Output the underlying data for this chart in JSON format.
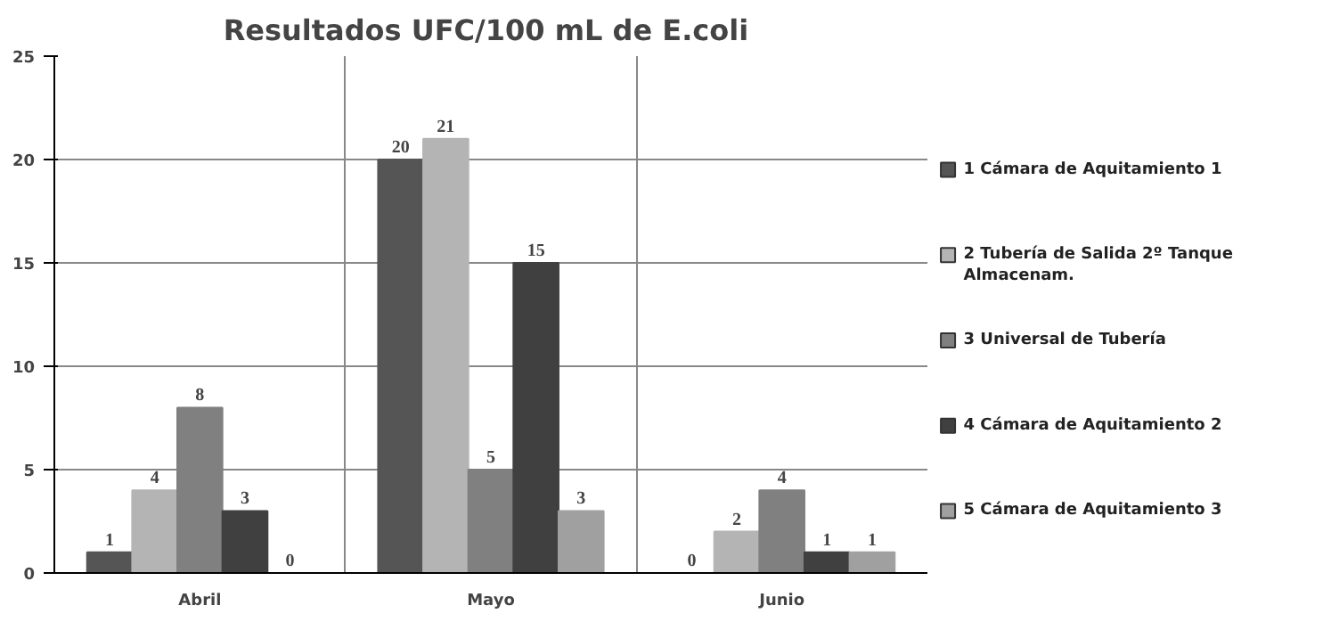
{
  "chart_data": {
    "type": "bar",
    "title": "Resultados  UFC/100 mL de E.coli",
    "categories": [
      "Abril",
      "Mayo",
      "Junio"
    ],
    "series": [
      {
        "name": "1 Cámara de Aquitamiento 1",
        "color": "#555555",
        "values": [
          1,
          20,
          0
        ]
      },
      {
        "name": "2 Tubería de Salida 2º Tanque Almacenam.",
        "color": "#b4b4b4",
        "values": [
          4,
          21,
          2
        ]
      },
      {
        "name": "3 Universal de Tubería",
        "color": "#808080",
        "values": [
          8,
          5,
          4
        ]
      },
      {
        "name": "4 Cámara de Aquitamiento 2",
        "color": "#404040",
        "values": [
          3,
          15,
          1
        ]
      },
      {
        "name": "5 Cámara de Aquitamiento 3",
        "color": "#a0a0a0",
        "values": [
          0,
          3,
          1
        ]
      }
    ],
    "ylim": [
      0,
      25
    ],
    "yticks": [
      0,
      5,
      10,
      15,
      20,
      25
    ],
    "grid": true,
    "legend": "right",
    "data_labels": true
  }
}
